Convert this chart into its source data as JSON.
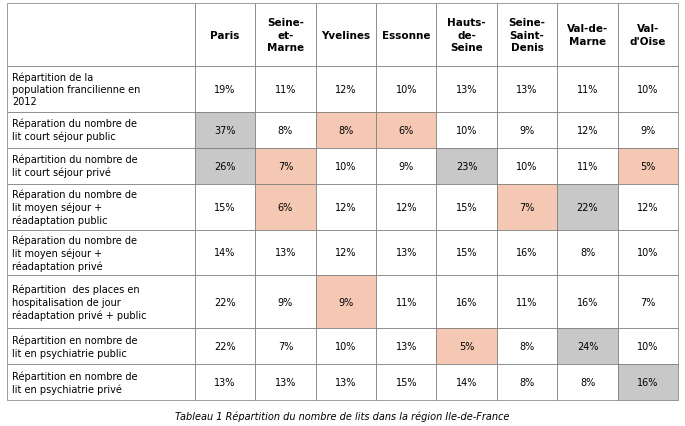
{
  "title": "Tableau 1 Répartition du nombre de lits dans la région Ile-de-France",
  "col_headers": [
    "Paris",
    "Seine-\net-\nMarne",
    "Yvelines",
    "Essonne",
    "Hauts-\nde-\nSeine",
    "Seine-\nSaint-\nDenis",
    "Val-de-\nMarne",
    "Val-\nd'Oise"
  ],
  "row_headers": [
    "Répartition de la\npopulation francilienne en\n2012",
    "Réparation du nombre de\nlit court séjour public",
    "Répartition du nombre de\nlit court séjour privé",
    "Réparation du nombre de\nlit moyen séjour +\nréadaptation public",
    "Réparation du nombre de\nlit moyen séjour +\nréadaptation privé",
    "Répartition  des places en\nhospitalisation de jour\nréadaptation privé + public",
    "Répartition en nombre de\nlit en psychiatrie public",
    "Répartition en nombre de\nlit en psychiatrie privé"
  ],
  "values": [
    [
      "19%",
      "11%",
      "12%",
      "10%",
      "13%",
      "13%",
      "11%",
      "10%"
    ],
    [
      "37%",
      "8%",
      "8%",
      "6%",
      "10%",
      "9%",
      "12%",
      "9%"
    ],
    [
      "26%",
      "7%",
      "10%",
      "9%",
      "23%",
      "10%",
      "11%",
      "5%"
    ],
    [
      "15%",
      "6%",
      "12%",
      "12%",
      "15%",
      "7%",
      "22%",
      "12%"
    ],
    [
      "14%",
      "13%",
      "12%",
      "13%",
      "15%",
      "16%",
      "8%",
      "10%"
    ],
    [
      "22%",
      "9%",
      "9%",
      "11%",
      "16%",
      "11%",
      "16%",
      "7%"
    ],
    [
      "22%",
      "7%",
      "10%",
      "13%",
      "5%",
      "8%",
      "24%",
      "10%"
    ],
    [
      "13%",
      "13%",
      "13%",
      "15%",
      "14%",
      "8%",
      "8%",
      "16%"
    ]
  ],
  "cell_colors": [
    [
      "white",
      "white",
      "white",
      "white",
      "white",
      "white",
      "white",
      "white"
    ],
    [
      "#c8c8c8",
      "white",
      "#f5c8b4",
      "#f5c8b4",
      "white",
      "white",
      "white",
      "white"
    ],
    [
      "#c8c8c8",
      "#f5c8b4",
      "white",
      "white",
      "#c8c8c8",
      "white",
      "white",
      "#f5c8b4"
    ],
    [
      "white",
      "#f5c8b4",
      "white",
      "white",
      "white",
      "#f5c8b4",
      "#c8c8c8",
      "white"
    ],
    [
      "white",
      "white",
      "white",
      "white",
      "white",
      "white",
      "white",
      "white"
    ],
    [
      "white",
      "white",
      "#f5c8b4",
      "white",
      "white",
      "white",
      "white",
      "white"
    ],
    [
      "white",
      "white",
      "white",
      "white",
      "#f5c8b4",
      "white",
      "#c8c8c8",
      "white"
    ],
    [
      "white",
      "white",
      "white",
      "white",
      "white",
      "white",
      "white",
      "#c8c8c8"
    ]
  ],
  "border_color": "#777777",
  "font_size": 7.0,
  "header_font_size": 7.5
}
